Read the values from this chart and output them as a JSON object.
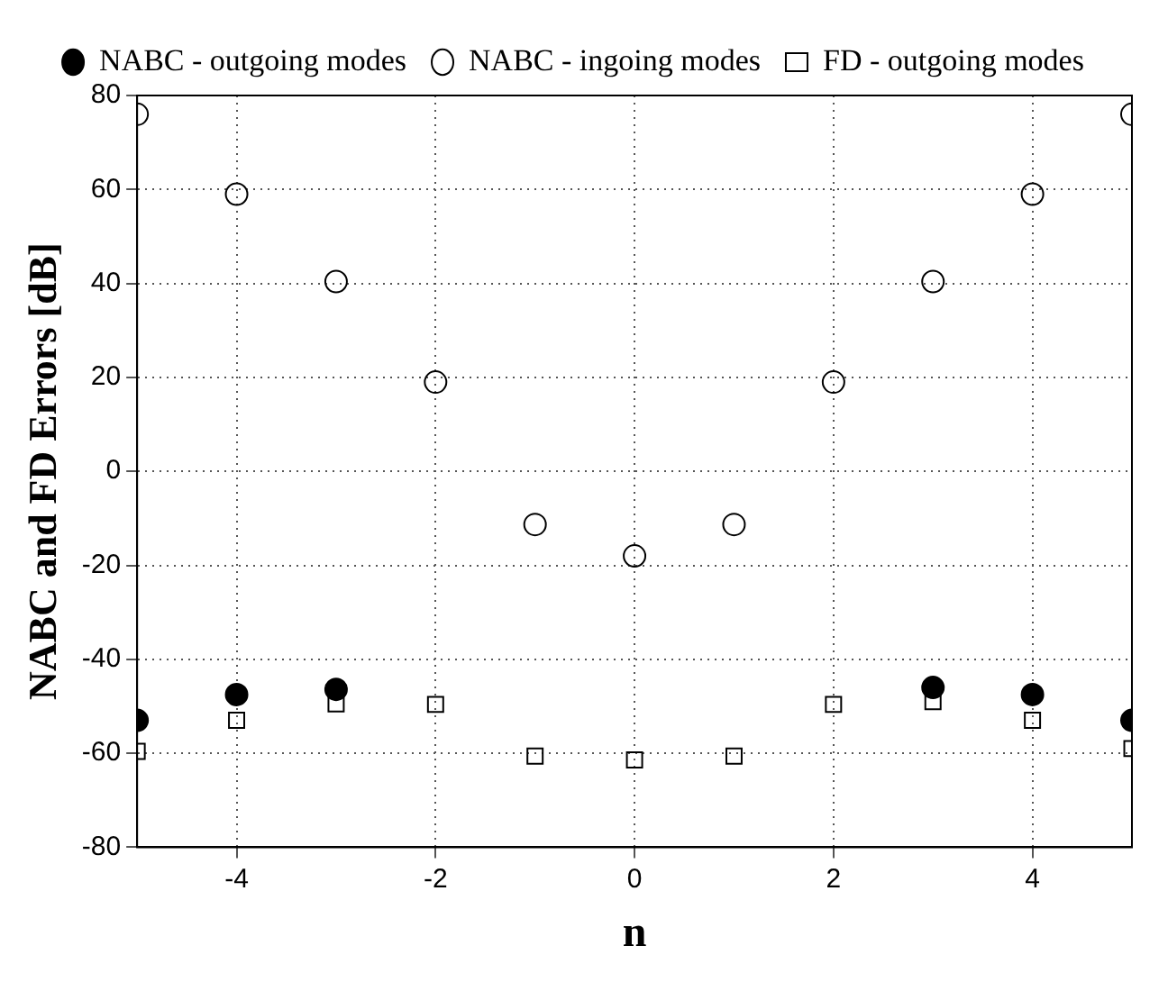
{
  "chart_data": {
    "type": "scatter",
    "xlabel": "n",
    "ylabel": "NABC and FD Errors [dB]",
    "x": [
      -5,
      -4,
      -3,
      -2,
      -1,
      0,
      1,
      2,
      3,
      4,
      5
    ],
    "series": [
      {
        "name": "NABC - outgoing modes",
        "color": "#000000",
        "marker": "circle",
        "values": [
          -53,
          -47.5,
          -46.4,
          null,
          null,
          null,
          null,
          null,
          -46,
          -47.5,
          -53
        ]
      },
      {
        "name": "NABC - ingoing modes",
        "color": "#000000",
        "marker": "circle",
        "values": [
          76,
          59,
          40.4,
          19,
          -11.3,
          -18,
          -11.3,
          19,
          40.4,
          59,
          76
        ]
      },
      {
        "name": "FD - outgoing modes",
        "color": "#000000",
        "marker": "square",
        "values": [
          -59.6,
          -53,
          -49.5,
          -49.6,
          -60.6,
          -61.4,
          -60.6,
          -49.6,
          -49,
          -53,
          -59
        ]
      }
    ],
    "xlim": [
      -5,
      5
    ],
    "xticks": [
      -4,
      -2,
      0,
      2,
      4
    ],
    "ylim": [
      -80,
      80
    ],
    "yticks": [
      -80,
      -60,
      -40,
      -20,
      0,
      20,
      40,
      60,
      80
    ],
    "grid": true,
    "legend": "top"
  }
}
